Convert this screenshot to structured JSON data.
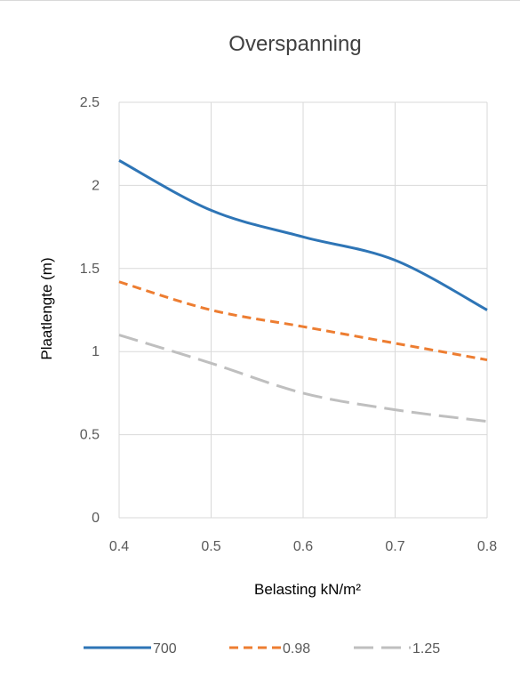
{
  "chart_data": {
    "type": "line",
    "title": "Overspanning",
    "xlabel": "Belasting kN/m²",
    "ylabel": "Plaatlengte (m)",
    "xlim": [
      0.4,
      0.8
    ],
    "ylim": [
      0,
      2.5
    ],
    "x_ticks": [
      "0.4",
      "0.5",
      "0.6",
      "0.7",
      "0.8"
    ],
    "y_ticks": [
      "0",
      "0.5",
      "1",
      "1.5",
      "2",
      "2.5"
    ],
    "grid": true,
    "legend_position": "bottom",
    "x": [
      0.4,
      0.5,
      0.6,
      0.7,
      0.8
    ],
    "series": [
      {
        "name": "700",
        "values": [
          2.15,
          1.85,
          1.69,
          1.55,
          1.25
        ],
        "color": "#2e75b6",
        "dash": "solid"
      },
      {
        "name": "0.98",
        "values": [
          1.42,
          1.25,
          1.15,
          1.05,
          0.95
        ],
        "color": "#ed7d31",
        "dash": "short"
      },
      {
        "name": "1.25",
        "values": [
          1.1,
          0.93,
          0.75,
          0.65,
          0.58
        ],
        "color": "#bfbfbf",
        "dash": "long"
      }
    ]
  }
}
